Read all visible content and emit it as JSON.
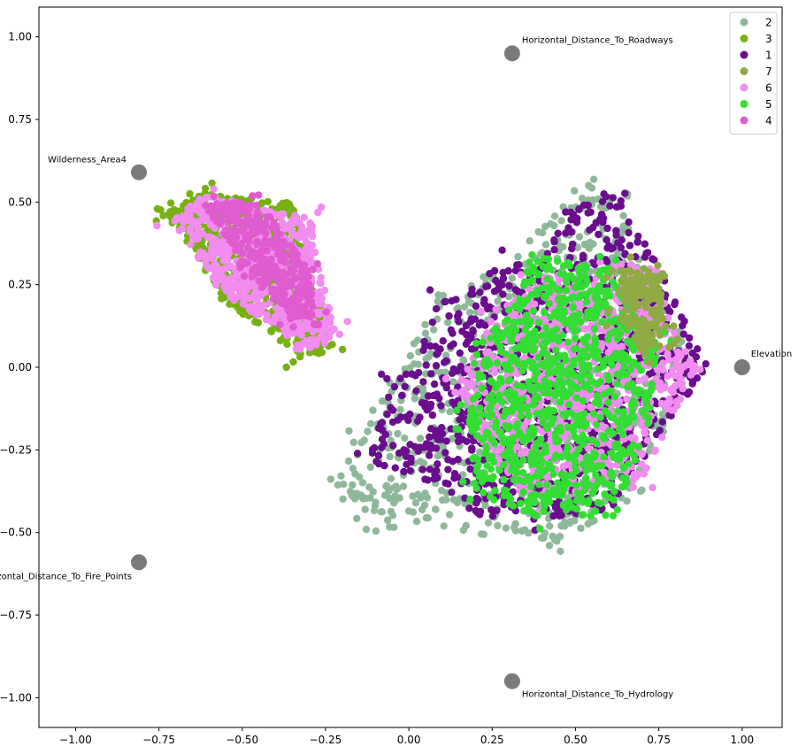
{
  "chart_data": {
    "type": "scatter",
    "title": "",
    "xlabel": "",
    "ylabel": "",
    "xlim": [
      -1.11,
      1.12
    ],
    "ylim": [
      -1.09,
      1.09
    ],
    "xticks": [
      -1.0,
      -0.75,
      -0.5,
      -0.25,
      0.0,
      0.25,
      0.5,
      0.75,
      1.0
    ],
    "xtick_labels": [
      "−1.00",
      "−0.75",
      "−0.50",
      "−0.25",
      "0.00",
      "0.25",
      "0.50",
      "0.75",
      "1.00"
    ],
    "yticks": [
      1.0,
      0.75,
      0.5,
      0.25,
      0.0,
      -0.25,
      -0.5,
      -0.75,
      -1.0
    ],
    "ytick_labels": [
      "1.00",
      "0.75",
      "0.50",
      "0.25",
      "0.00",
      "−0.25",
      "−0.50",
      "−0.75",
      "−1.00"
    ],
    "grid": false,
    "legend_position": "top-right",
    "anchors": [
      {
        "label": "Horizontal_Distance_To_Roadways",
        "x": 0.31,
        "y": 0.95
      },
      {
        "label": "Wilderness_Area4",
        "x": -0.81,
        "y": 0.59
      },
      {
        "label": "Elevation",
        "x": 1.0,
        "y": 0.0
      },
      {
        "label": "Horizontal_Distance_To_Fire_Points",
        "x": -0.81,
        "y": -0.59
      },
      {
        "label": "Horizontal_Distance_To_Hydrology",
        "x": 0.31,
        "y": -0.95
      }
    ],
    "series": [
      {
        "name": "2",
        "color": "#8fb89a",
        "region": [
          [
            0.52,
            0.56
          ],
          [
            0.62,
            0.52
          ],
          [
            0.85,
            0.05
          ],
          [
            0.7,
            -0.38
          ],
          [
            0.45,
            -0.53
          ],
          [
            0.2,
            -0.48
          ],
          [
            -0.15,
            -0.5
          ],
          [
            -0.25,
            -0.35
          ],
          [
            -0.15,
            -0.2
          ],
          [
            0.1,
            0.22
          ],
          [
            0.35,
            0.37
          ]
        ]
      },
      {
        "name": "1",
        "color": "#6a0d8e",
        "region": [
          [
            0.55,
            0.54
          ],
          [
            0.65,
            0.5
          ],
          [
            0.9,
            0.0
          ],
          [
            0.75,
            -0.2
          ],
          [
            0.62,
            -0.42
          ],
          [
            0.4,
            -0.48
          ],
          [
            0.2,
            -0.45
          ],
          [
            0.05,
            -0.35
          ],
          [
            -0.12,
            -0.28
          ],
          [
            -0.05,
            -0.05
          ],
          [
            0.1,
            0.2
          ],
          [
            0.3,
            0.32
          ]
        ]
      },
      {
        "name": "6",
        "color": "#f28cf0",
        "region": [
          [
            0.5,
            0.32
          ],
          [
            0.72,
            0.32
          ],
          [
            0.86,
            0.0
          ],
          [
            0.7,
            -0.35
          ],
          [
            0.35,
            -0.4
          ],
          [
            0.2,
            -0.2
          ],
          [
            0.15,
            -0.05
          ],
          [
            0.25,
            0.15
          ],
          [
            0.37,
            0.25
          ]
        ]
      },
      {
        "name": "5",
        "color": "#33dd33",
        "region": [
          [
            0.37,
            0.35
          ],
          [
            0.6,
            0.3
          ],
          [
            0.75,
            0.08
          ],
          [
            0.72,
            -0.18
          ],
          [
            0.62,
            -0.45
          ],
          [
            0.38,
            -0.45
          ],
          [
            0.2,
            -0.38
          ],
          [
            0.18,
            -0.15
          ],
          [
            0.2,
            0.05
          ],
          [
            0.32,
            0.2
          ]
        ]
      },
      {
        "name": "7",
        "color": "#8faa44",
        "region": [
          [
            0.63,
            0.3
          ],
          [
            0.75,
            0.3
          ],
          [
            0.77,
            0.1
          ],
          [
            0.7,
            0.05
          ],
          [
            0.63,
            0.15
          ]
        ]
      },
      {
        "name": "3",
        "color": "#77b012",
        "region": [
          [
            -0.73,
            0.47
          ],
          [
            -0.62,
            0.53
          ],
          [
            -0.35,
            0.5
          ],
          [
            -0.23,
            0.05
          ],
          [
            -0.33,
            0.03
          ],
          [
            -0.55,
            0.2
          ]
        ]
      },
      {
        "name": "6",
        "color": "#f28cf0",
        "region": [
          [
            -0.72,
            0.45
          ],
          [
            -0.6,
            0.52
          ],
          [
            -0.3,
            0.45
          ],
          [
            -0.22,
            0.1
          ],
          [
            -0.3,
            0.05
          ],
          [
            -0.55,
            0.22
          ]
        ]
      },
      {
        "name": "4",
        "color": "#e15cd0",
        "region": [
          [
            -0.62,
            0.5
          ],
          [
            -0.45,
            0.5
          ],
          [
            -0.3,
            0.3
          ],
          [
            -0.28,
            0.15
          ],
          [
            -0.35,
            0.15
          ],
          [
            -0.5,
            0.3
          ]
        ]
      }
    ],
    "legend": [
      {
        "label": "2",
        "color": "#8fb89a"
      },
      {
        "label": "3",
        "color": "#77b012"
      },
      {
        "label": "1",
        "color": "#6a0d8e"
      },
      {
        "label": "7",
        "color": "#8faa44"
      },
      {
        "label": "6",
        "color": "#f28cf0"
      },
      {
        "label": "5",
        "color": "#33dd33"
      },
      {
        "label": "4",
        "color": "#e15cd0"
      }
    ]
  }
}
